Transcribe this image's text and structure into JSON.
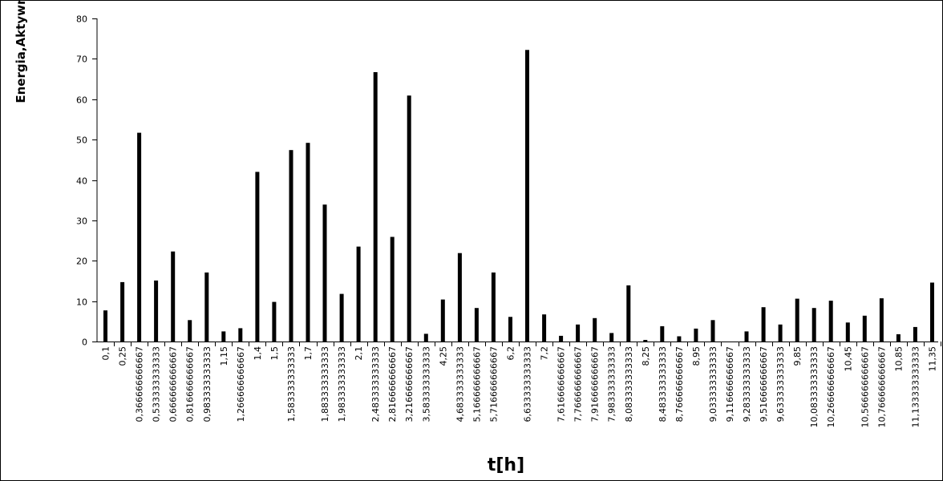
{
  "chart_data": {
    "type": "bar",
    "title": "",
    "xlabel": "t[h]",
    "ylabel": "Energia,Aktywn",
    "ylim": [
      0,
      80
    ],
    "yticks": [
      0,
      10,
      20,
      30,
      40,
      50,
      60,
      70,
      80
    ],
    "grid": false,
    "legend": "none",
    "bar_color": "#000000",
    "categories": [
      "0,1",
      "0,25",
      "0,366666666667",
      "0,533333333333",
      "0,666666666667",
      "0,816666666667",
      "0,983333333333",
      "1,15",
      "1,266666666667",
      "1,4",
      "1,5",
      "1,583333333333",
      "1,7",
      "1,883333333333",
      "1,983333333333",
      "2,1",
      "2,483333333333",
      "2,816666666667",
      "3,216666666667",
      "3,583333333333",
      "4,25",
      "4,683333333333",
      "5,166666666667",
      "5,716666666667",
      "6,2",
      "6,633333333333",
      "7,2",
      "7,616666666667",
      "7,766666666667",
      "7,916666666667",
      "7,983333333333",
      "8,083333333333",
      "8,25",
      "8,483333333333",
      "8,766666666667",
      "8,95",
      "9,033333333333",
      "9,116666666667",
      "9,283333333333",
      "9,516666666667",
      "9,633333333333",
      "9,85",
      "10,083333333333",
      "10,266666666667",
      "10,45",
      "10,566666666667",
      "10,766666666667",
      "10,85",
      "11,133333333333",
      "11,35"
    ],
    "values": [
      7.7,
      14.7,
      51.7,
      15.1,
      22.3,
      5.3,
      17.1,
      2.5,
      3.3,
      42.0,
      9.8,
      47.4,
      49.2,
      33.9,
      11.8,
      23.5,
      66.7,
      25.9,
      60.9,
      1.9,
      10.4,
      21.9,
      8.3,
      17.1,
      6.1,
      72.2,
      6.7,
      1.4,
      4.2,
      5.8,
      2.1,
      13.9,
      0.4,
      3.8,
      1.3,
      3.2,
      5.3,
      0.0,
      2.5,
      8.5,
      4.2,
      10.6,
      8.3,
      10.1,
      4.7,
      6.4,
      10.7,
      1.8,
      3.6,
      14.6
    ]
  }
}
